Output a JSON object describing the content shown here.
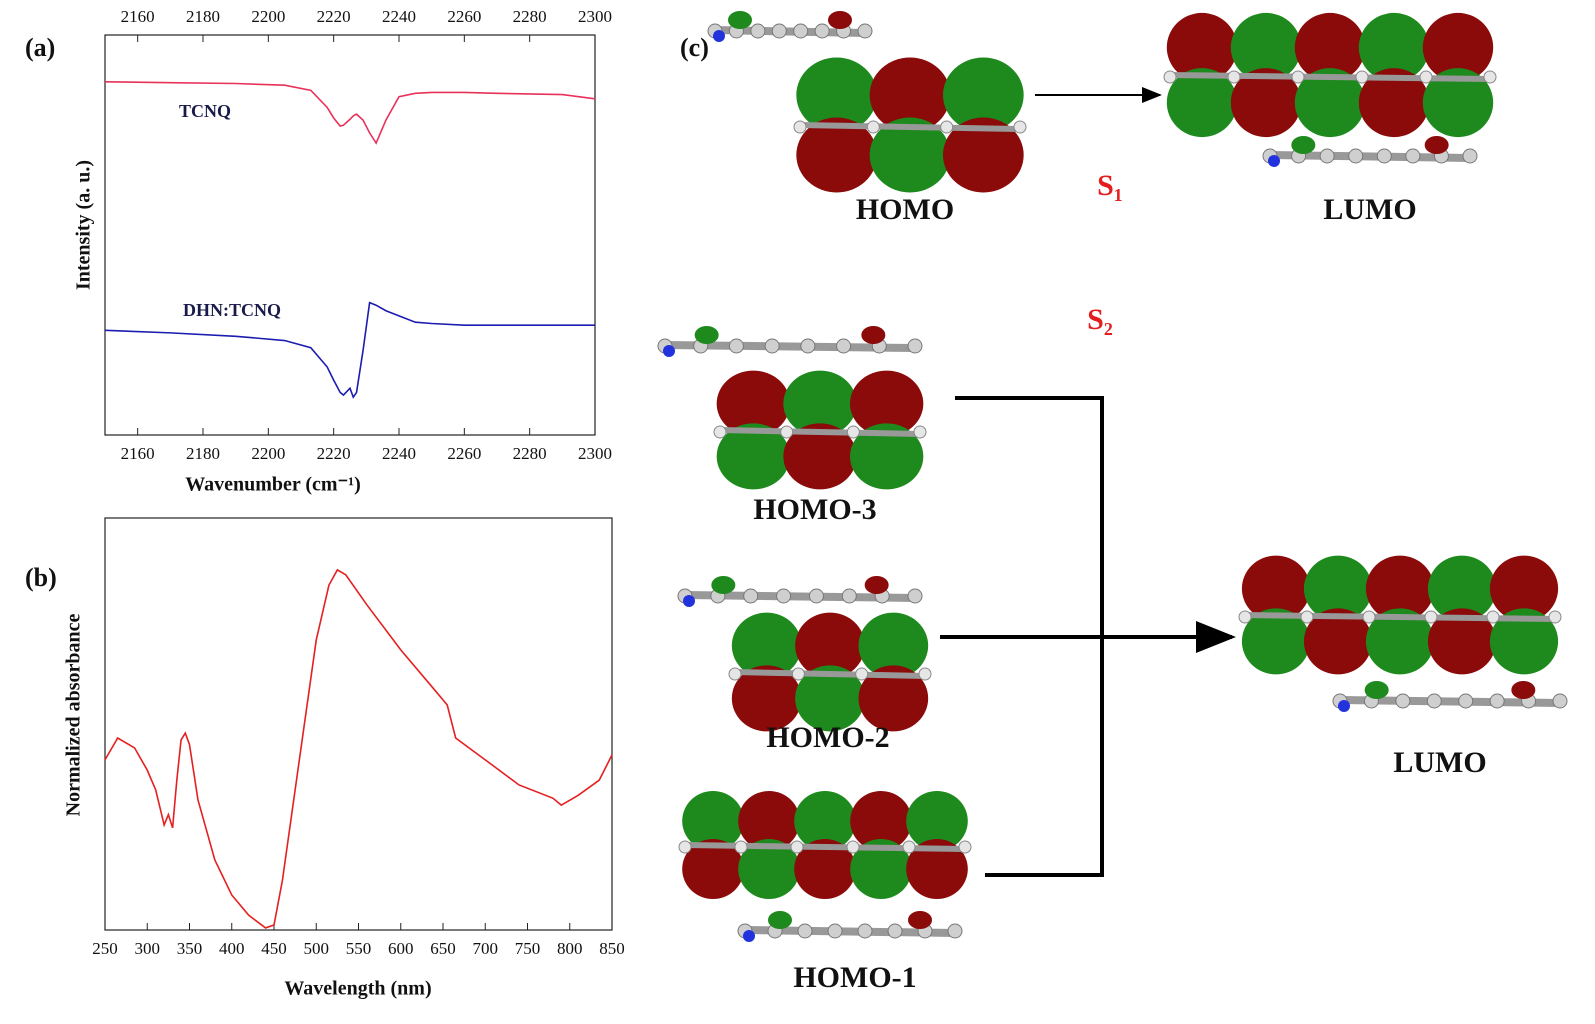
{
  "chart_data": [
    {
      "type": "line",
      "panel_label": "(a)",
      "x_label": "Wavenumber (cm⁻¹)",
      "y_label": "Intensity (a. u.)",
      "x": [
        2150,
        2170,
        2190,
        2205,
        2213,
        2218,
        2220,
        2222,
        2223,
        2225,
        2226,
        2227,
        2229,
        2231,
        2233,
        2236,
        2240,
        2245,
        2250,
        2260,
        2270,
        2290,
        2300
      ],
      "series": [
        {
          "name": "TCNQ",
          "color": "#e8325a",
          "values": [
            0.83,
            0.828,
            0.826,
            0.822,
            0.81,
            0.77,
            0.745,
            0.726,
            0.728,
            0.742,
            0.75,
            0.754,
            0.74,
            0.71,
            0.686,
            0.74,
            0.795,
            0.803,
            0.805,
            0.805,
            0.803,
            0.8,
            0.79
          ]
        },
        {
          "name": "DHN:TCNQ",
          "color": "#1c1cb0",
          "values": [
            0.246,
            0.24,
            0.232,
            0.222,
            0.205,
            0.16,
            0.129,
            0.1,
            0.094,
            0.11,
            0.089,
            0.1,
            0.199,
            0.311,
            0.305,
            0.292,
            0.28,
            0.265,
            0.262,
            0.258,
            0.258,
            0.258,
            0.258
          ]
        }
      ],
      "xlim": [
        2150,
        2300
      ],
      "xticks": [
        2160,
        2180,
        2200,
        2220,
        2240,
        2260,
        2280,
        2300
      ],
      "ylim": [
        0,
        0.94
      ],
      "mirror_top_ticks": true
    },
    {
      "type": "line",
      "panel_label": "(b)",
      "x_label": "Wavelength (nm)",
      "y_label": "Normalized absorbance",
      "x": [
        250,
        265,
        285,
        300,
        310,
        320,
        325,
        330,
        335,
        340,
        345,
        350,
        360,
        380,
        400,
        420,
        440,
        450,
        460,
        480,
        500,
        515,
        525,
        535,
        560,
        600,
        640,
        655,
        665,
        700,
        740,
        780,
        790,
        810,
        835,
        850
      ],
      "series": [
        {
          "color": "#e42020",
          "values": [
            0.413,
            0.466,
            0.442,
            0.388,
            0.34,
            0.255,
            0.28,
            0.248,
            0.364,
            0.461,
            0.478,
            0.45,
            0.316,
            0.17,
            0.085,
            0.036,
            0.005,
            0.012,
            0.121,
            0.413,
            0.704,
            0.837,
            0.874,
            0.862,
            0.789,
            0.68,
            0.583,
            0.546,
            0.466,
            0.413,
            0.352,
            0.32,
            0.303,
            0.327,
            0.364,
            0.425
          ]
        }
      ],
      "xlim": [
        250,
        850
      ],
      "xticks": [
        250,
        300,
        350,
        400,
        450,
        500,
        550,
        600,
        650,
        700,
        750,
        800,
        850
      ],
      "ylim": [
        0,
        1
      ],
      "mirror_top_ticks": false
    }
  ],
  "diagram": {
    "panel_label": "(c)",
    "states": [
      "S₁",
      "S₂"
    ],
    "orbitals": [
      {
        "label": "HOMO"
      },
      {
        "label": "LUMO"
      },
      {
        "label": "HOMO-3"
      },
      {
        "label": "HOMO-2"
      },
      {
        "label": "HOMO-1"
      },
      {
        "label": "LUMO"
      }
    ]
  }
}
